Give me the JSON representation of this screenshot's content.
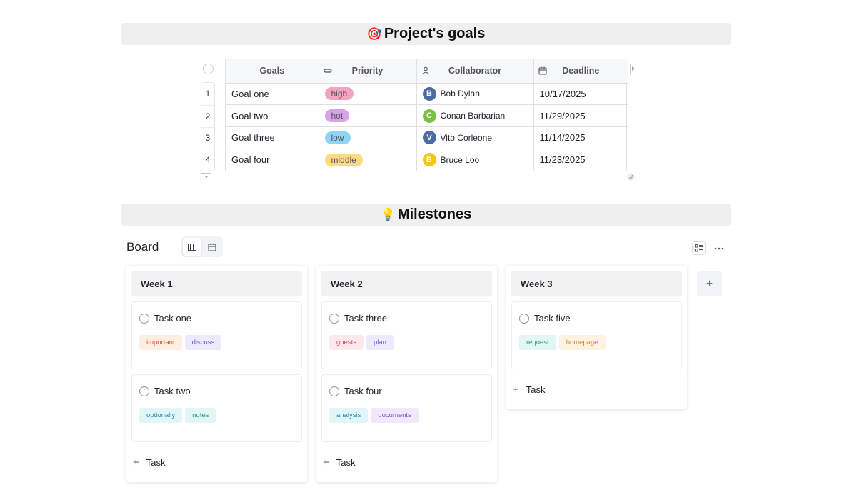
{
  "goals_section": {
    "emoji": "🎯",
    "title": "Project's goals",
    "table": {
      "columns": [
        {
          "label": "Goals",
          "icon": ""
        },
        {
          "label": "Priority",
          "icon": "single-select-icon"
        },
        {
          "label": "Collaborator",
          "icon": "person-icon"
        },
        {
          "label": "Deadline",
          "icon": "calendar-icon"
        }
      ],
      "rows": [
        {
          "num": "1",
          "goal": "Goal one",
          "priority": "high",
          "priority_color": "#f5a3c0",
          "collaborator": "Bob Dylan",
          "initial": "B",
          "avatar_color": "#4e6ca3",
          "deadline": "10/17/2025"
        },
        {
          "num": "2",
          "goal": "Goal two",
          "priority": "hot",
          "priority_color": "#d8a2e8",
          "collaborator": "Conan Barbarian",
          "initial": "C",
          "avatar_color": "#7ac143",
          "deadline": "11/29/2025"
        },
        {
          "num": "3",
          "goal": "Goal three",
          "priority": "low",
          "priority_color": "#8fd3f7",
          "collaborator": "Vito Corleone",
          "initial": "V",
          "avatar_color": "#4e6ca3",
          "deadline": "11/14/2025"
        },
        {
          "num": "4",
          "goal": "Goal four",
          "priority": "middle",
          "priority_color": "#fbdc7c",
          "collaborator": "Bruce Loo",
          "initial": "B",
          "avatar_color": "#f5c518",
          "deadline": "11/23/2025"
        }
      ]
    }
  },
  "milestones_section": {
    "emoji": "💡",
    "title": "Milestones",
    "board_label": "Board",
    "add_task_label": "Task",
    "columns": [
      {
        "name": "Week 1",
        "cards": [
          {
            "title": "Task one",
            "tags": [
              {
                "label": "important",
                "bg": "#fdeee3",
                "fg": "#d4581a"
              },
              {
                "label": "discuss",
                "bg": "#ecebfd",
                "fg": "#6b5bd6"
              }
            ]
          },
          {
            "title": "Task two",
            "tags": [
              {
                "label": "optionally",
                "bg": "#e2f6f9",
                "fg": "#1a91a8"
              },
              {
                "label": "notes",
                "bg": "#e2f6f6",
                "fg": "#1a9a9a"
              }
            ]
          }
        ]
      },
      {
        "name": "Week 2",
        "cards": [
          {
            "title": "Task three",
            "tags": [
              {
                "label": "guests",
                "bg": "#fde9ec",
                "fg": "#d64561"
              },
              {
                "label": "plan",
                "bg": "#ecebfd",
                "fg": "#6b5bd6"
              }
            ]
          },
          {
            "title": "Task four",
            "tags": [
              {
                "label": "analysis",
                "bg": "#e2f6f9",
                "fg": "#1a91a8"
              },
              {
                "label": "documents",
                "bg": "#efe9fb",
                "fg": "#7a4fd0"
              }
            ]
          }
        ]
      },
      {
        "name": "Week 3",
        "cards": [
          {
            "title": "Task five",
            "tags": [
              {
                "label": "request",
                "bg": "#e2f7f1",
                "fg": "#139a74"
              },
              {
                "label": "homepage",
                "bg": "#fef3e3",
                "fg": "#d9861a"
              }
            ]
          }
        ]
      }
    ]
  }
}
